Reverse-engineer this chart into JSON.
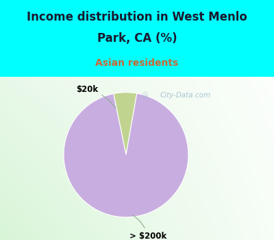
{
  "title_line1": "Income distribution in West Menlo",
  "title_line2": "Park, CA (%)",
  "subtitle": "Asian residents",
  "slices": [
    {
      "label": "$20k",
      "value": 6,
      "color": "#c0d490"
    },
    {
      "label": "> $200k",
      "value": 94,
      "color": "#c8aee0"
    }
  ],
  "title_color": "#1a1a2e",
  "subtitle_color": "#cc6633",
  "background_cyan": "#00ffff",
  "watermark_text": "City-Data.com",
  "watermark_color": "#99bbcc"
}
